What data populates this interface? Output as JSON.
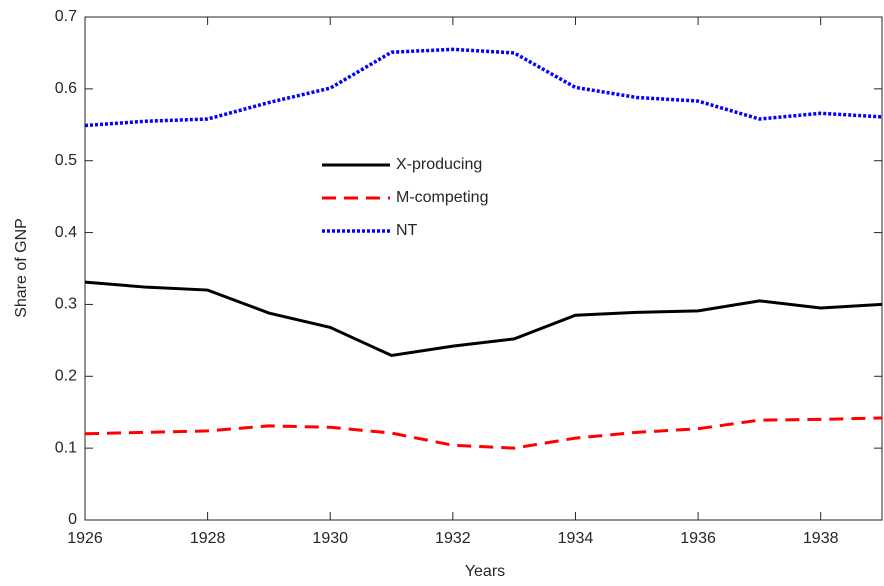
{
  "chart_data": {
    "type": "line",
    "x_label": "Years",
    "y_label": "Share of GNP",
    "x": [
      1926,
      1927,
      1928,
      1929,
      1930,
      1931,
      1932,
      1933,
      1934,
      1935,
      1936,
      1937,
      1938,
      1939
    ],
    "series": [
      {
        "name": "X-producing",
        "color": "#000000",
        "dash": "solid",
        "values": [
          0.331,
          0.324,
          0.32,
          0.288,
          0.268,
          0.229,
          0.242,
          0.252,
          0.285,
          0.289,
          0.291,
          0.305,
          0.295,
          0.3
        ]
      },
      {
        "name": "M-competing",
        "color": "#ff0000",
        "dash": "dashed",
        "values": [
          0.12,
          0.122,
          0.124,
          0.131,
          0.129,
          0.121,
          0.104,
          0.1,
          0.114,
          0.122,
          0.127,
          0.139,
          0.14,
          0.142
        ]
      },
      {
        "name": "NT",
        "color": "#0000ff",
        "dash": "dotted",
        "values": [
          0.549,
          0.555,
          0.558,
          0.581,
          0.601,
          0.651,
          0.655,
          0.65,
          0.602,
          0.588,
          0.583,
          0.558,
          0.566,
          0.561
        ]
      }
    ],
    "xlim": [
      1926,
      1939
    ],
    "xticks": [
      1926,
      1928,
      1930,
      1932,
      1934,
      1936,
      1938
    ],
    "ylim": [
      0,
      0.7
    ],
    "yticks": [
      0,
      0.1,
      0.2,
      0.3,
      0.4,
      0.5,
      0.6,
      0.7
    ],
    "grid": false
  }
}
